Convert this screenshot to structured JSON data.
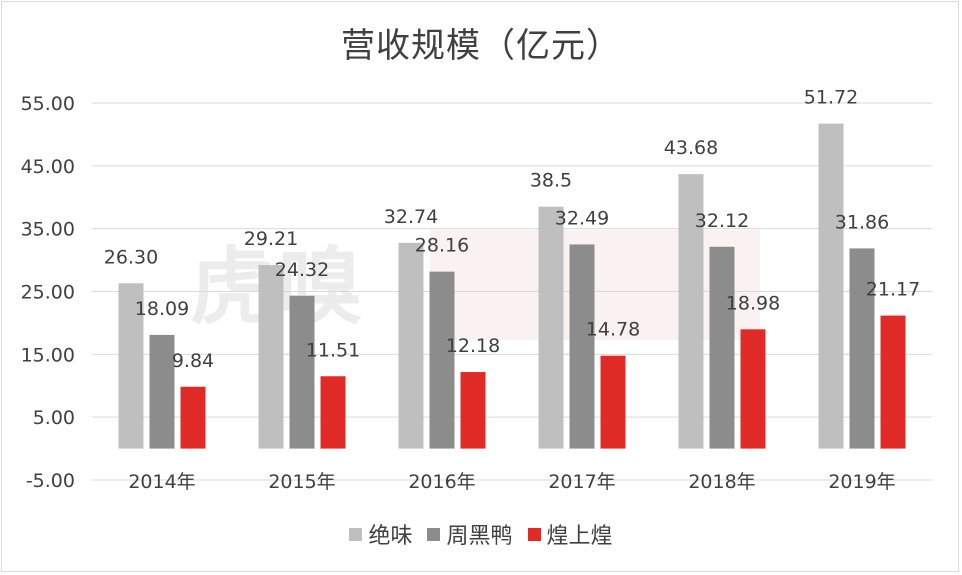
{
  "chart_data": {
    "type": "bar",
    "title": "营收规模（亿元）",
    "xlabel": "",
    "ylabel": "",
    "categories": [
      "2014年",
      "2015年",
      "2016年",
      "2017年",
      "2018年",
      "2019年"
    ],
    "ylim": [
      -5,
      55
    ],
    "yticks": [
      "55.00",
      "45.00",
      "35.00",
      "25.00",
      "15.00",
      "5.00",
      "-5.00"
    ],
    "ytick_values": [
      55,
      45,
      35,
      25,
      15,
      5,
      -5
    ],
    "grid": true,
    "legend_position": "bottom",
    "series": [
      {
        "name": "绝味",
        "color": "#bfbfbf",
        "values": [
          26.3,
          29.21,
          32.74,
          38.5,
          43.68,
          51.72
        ],
        "labels": [
          "26.30",
          "29.21",
          "32.74",
          "38.5",
          "43.68",
          "51.72"
        ]
      },
      {
        "name": "周黑鸭",
        "color": "#8c8c8c",
        "values": [
          18.09,
          24.32,
          28.16,
          32.49,
          32.12,
          31.86
        ],
        "labels": [
          "18.09",
          "24.32",
          "28.16",
          "32.49",
          "32.12",
          "31.86"
        ]
      },
      {
        "name": "煌上煌",
        "color": "#e02b27",
        "values": [
          9.84,
          11.51,
          12.18,
          14.78,
          18.98,
          21.17
        ],
        "labels": [
          "9.84",
          "11.51",
          "12.18",
          "14.78",
          "18.98",
          "21.17"
        ]
      }
    ]
  },
  "watermark": {
    "text": "虎嗅"
  }
}
